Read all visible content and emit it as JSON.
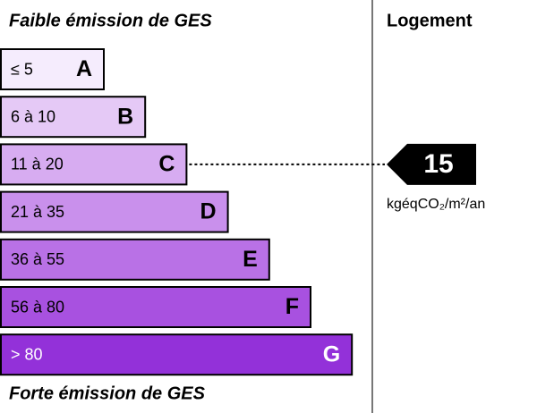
{
  "header": {
    "top_label": "Faible émission de GES",
    "bottom_label": "Forte émission de GES",
    "column_title": "Logement"
  },
  "classes": [
    {
      "range": "≤ 5",
      "letter": "A",
      "color": "#f5ecfd",
      "text_color": "#000000"
    },
    {
      "range": "6 à 10",
      "letter": "B",
      "color": "#e5c9f6",
      "text_color": "#000000"
    },
    {
      "range": "11 à 20",
      "letter": "C",
      "color": "#d7acf1",
      "text_color": "#000000"
    },
    {
      "range": "21 à 35",
      "letter": "D",
      "color": "#c990ec",
      "text_color": "#000000"
    },
    {
      "range": "36 à 55",
      "letter": "E",
      "color": "#b971e6",
      "text_color": "#000000"
    },
    {
      "range": "56 à 80",
      "letter": "F",
      "color": "#a851e0",
      "text_color": "#000000"
    },
    {
      "range": "> 80",
      "letter": "G",
      "color": "#9331d9",
      "text_color": "#ffffff"
    }
  ],
  "indicator": {
    "value": 15,
    "class": "C",
    "unit": "kgéqCO₂/m²/an"
  }
}
